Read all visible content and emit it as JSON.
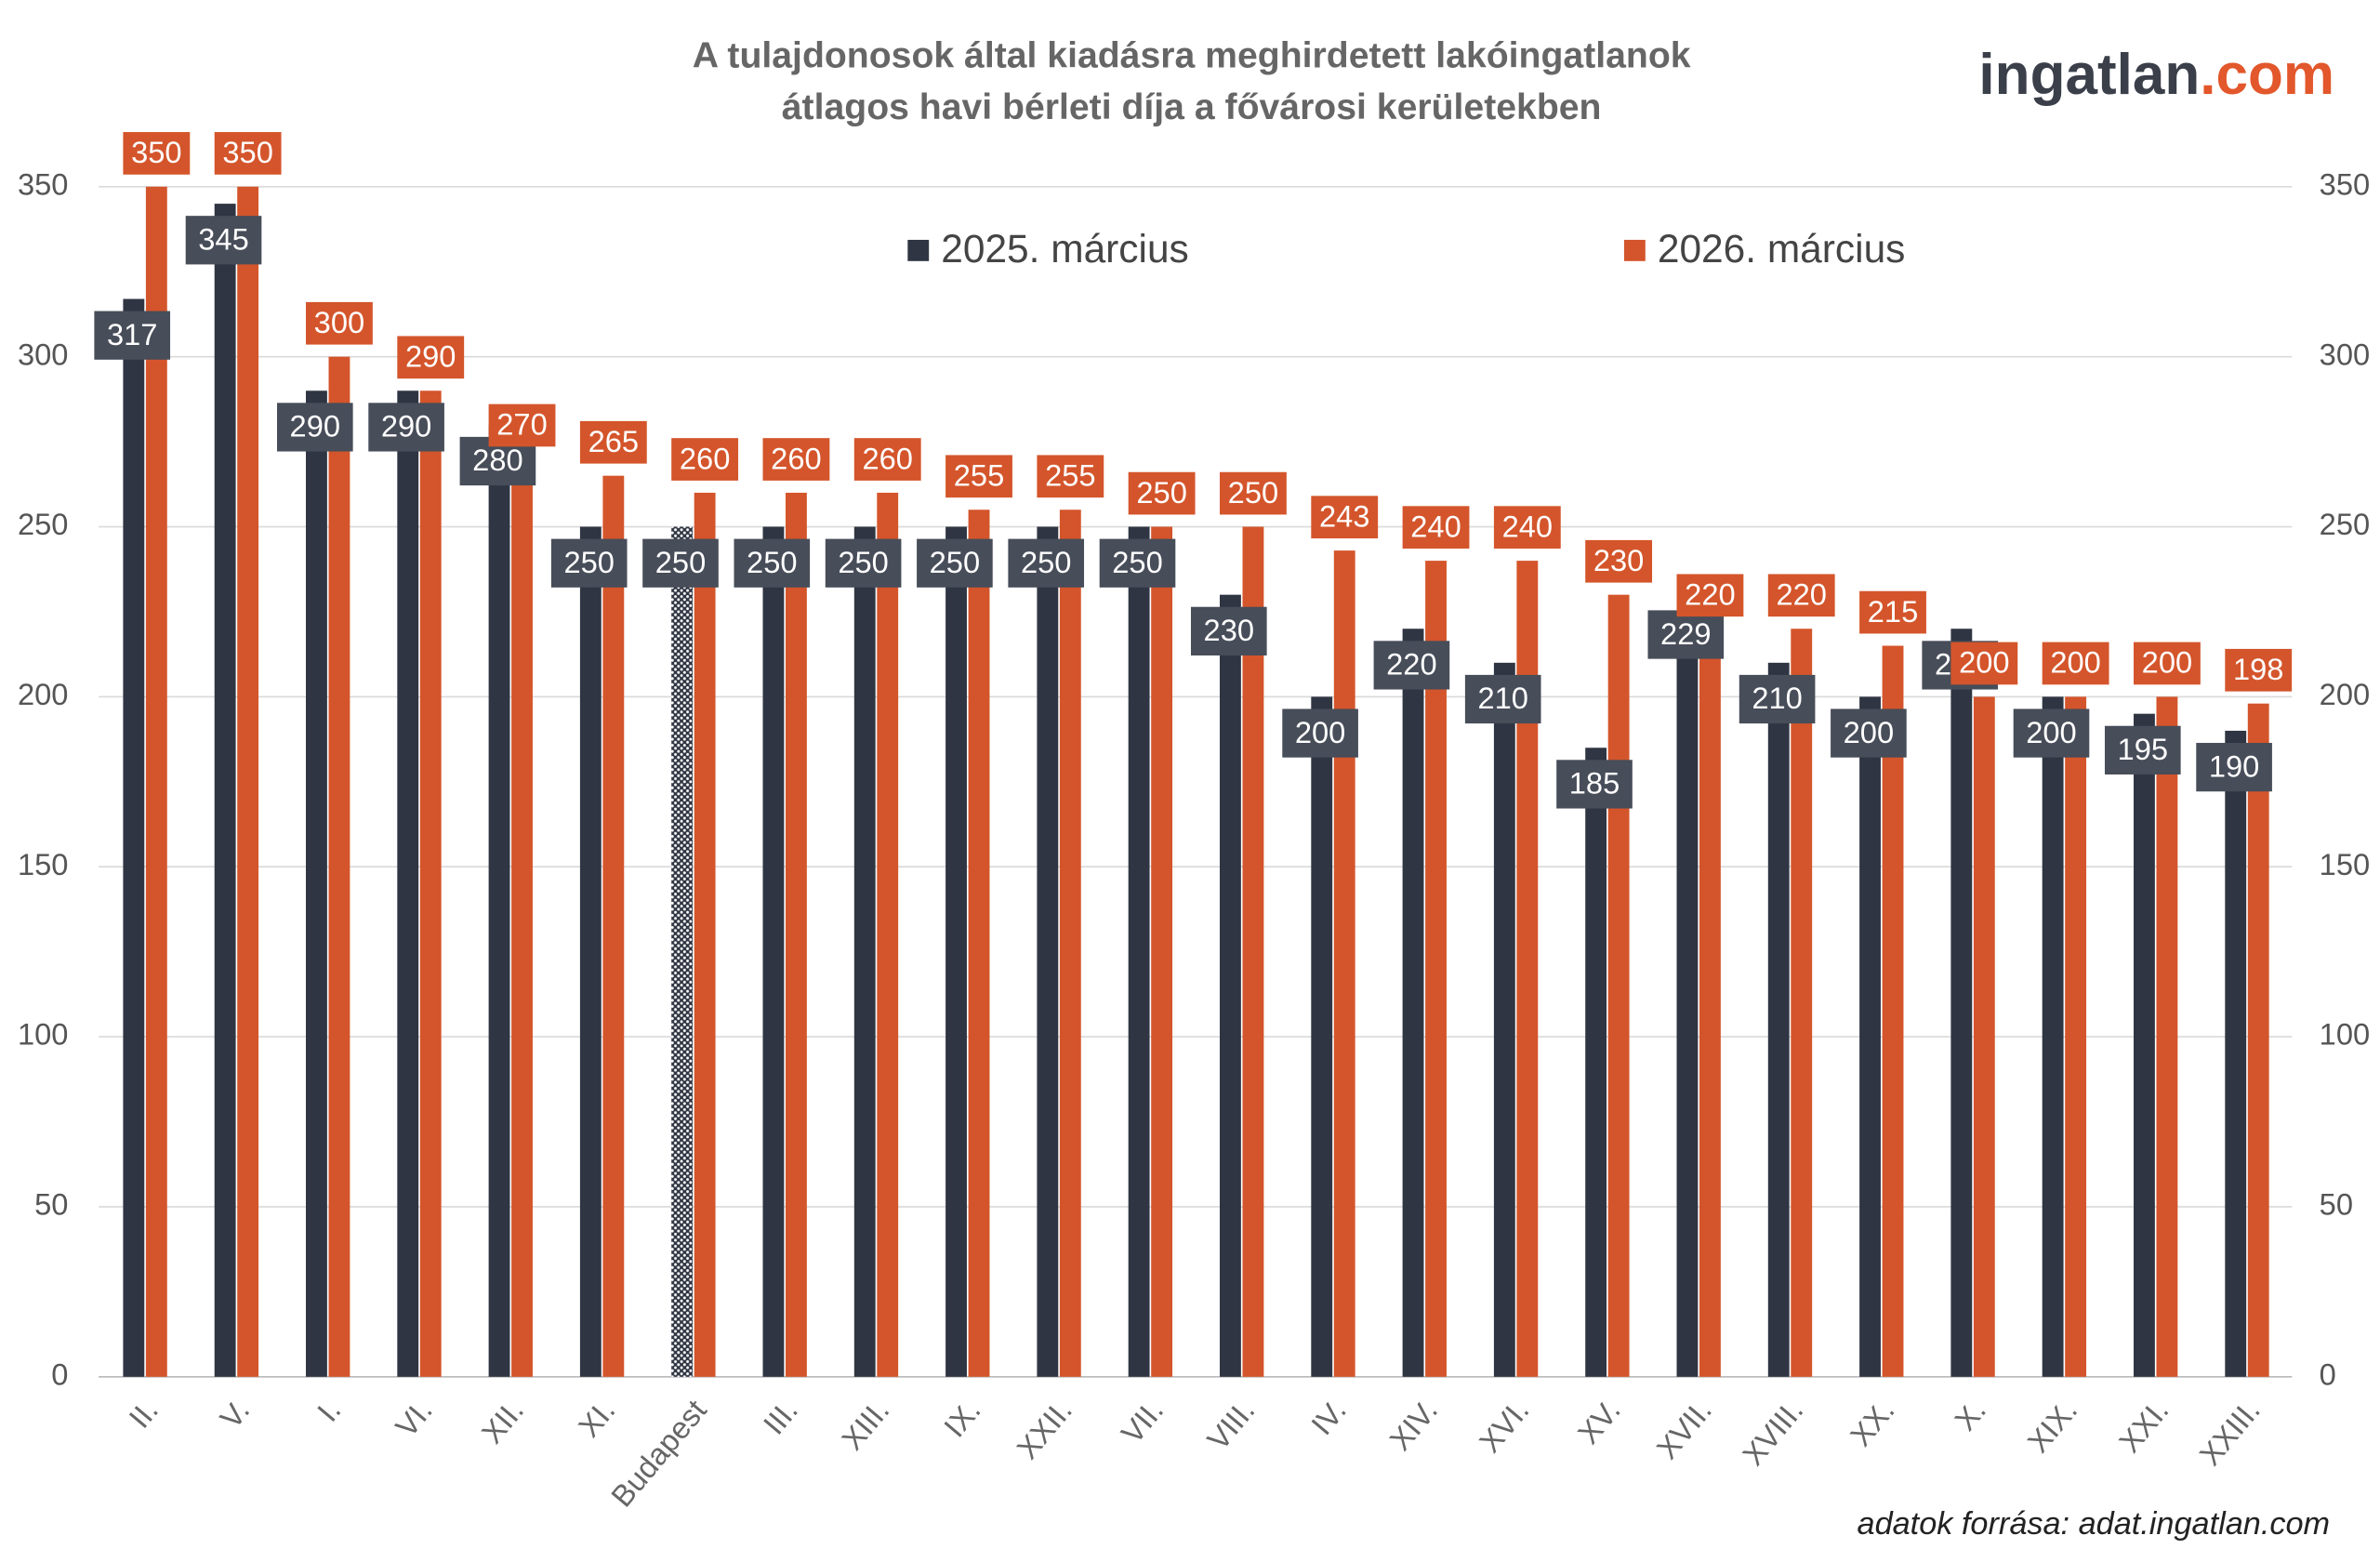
{
  "logo": [
    "ingatlan",
    ".com"
  ],
  "chart_data": {
    "type": "bar",
    "title": [
      "A tulajdonosok által kiadásra meghirdetett lakóingatlanok",
      "átlagos havi bérleti díja a fővárosi kerületekben"
    ],
    "source": "adatok forrása: adat.ingatlan.com",
    "categories": [
      "II.",
      "V.",
      "I.",
      "VI.",
      "XII.",
      "XI.",
      "Budapest",
      "III.",
      "XIII.",
      "IX.",
      "XXII.",
      "VII.",
      "VIII.",
      "IV.",
      "XIV.",
      "XVI.",
      "XV.",
      "XVII.",
      "XVIII.",
      "XX.",
      "X.",
      "XIX.",
      "XXI.",
      "XXIII."
    ],
    "series": [
      {
        "name": "2025. március",
        "color": "#2f3542",
        "label_color": "#474d59",
        "values": [
          317,
          345,
          290,
          290,
          280,
          250,
          250,
          250,
          250,
          250,
          250,
          250,
          230,
          200,
          220,
          210,
          185,
          229,
          210,
          200,
          220,
          200,
          195,
          190
        ]
      },
      {
        "name": "2026. március",
        "color": "#d4552b",
        "label_color": "#d4552b",
        "values": [
          350,
          350,
          300,
          290,
          270,
          265,
          260,
          260,
          260,
          255,
          255,
          250,
          250,
          243,
          240,
          240,
          230,
          220,
          220,
          215,
          200,
          200,
          200,
          198
        ]
      }
    ],
    "highlight": 6,
    "ylim": [
      0,
      350
    ],
    "yticks": [
      0,
      50,
      100,
      150,
      200,
      250,
      300,
      350
    ],
    "y2lim": [
      0,
      350
    ],
    "y2ticks": [
      0,
      50,
      100,
      150,
      200,
      250,
      300,
      350
    ],
    "grid": true
  }
}
